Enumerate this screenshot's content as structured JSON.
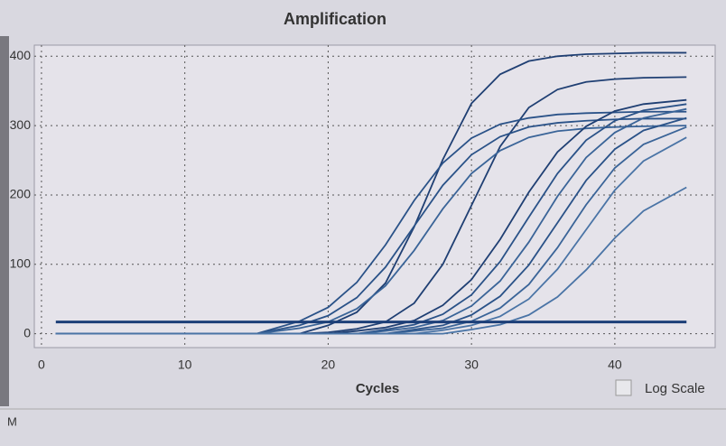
{
  "chart_data": {
    "type": "line",
    "title": "Amplification",
    "x_label": "Cycles",
    "x": [
      1,
      5,
      10,
      15,
      18,
      20,
      22,
      24,
      26,
      28,
      30,
      32,
      34,
      36,
      38,
      40,
      42,
      45
    ],
    "series": [
      {
        "color": "#1f3f73",
        "values": [
          0,
          0,
          0,
          0,
          0,
          12,
          31,
          73,
          154,
          251,
          332,
          374,
          393,
          400,
          403,
          404,
          405,
          405
        ]
      },
      {
        "color": "#1f3f73",
        "values": [
          0,
          0,
          0,
          0,
          0,
          2,
          7,
          17,
          44,
          100,
          185,
          270,
          326,
          352,
          363,
          367,
          369,
          370
        ]
      },
      {
        "color": "#2a5288",
        "values": [
          0,
          0,
          0,
          0,
          18,
          38,
          74,
          128,
          192,
          246,
          282,
          302,
          311,
          316,
          318,
          319,
          320,
          320
        ]
      },
      {
        "color": "#2a5288",
        "values": [
          0,
          0,
          0,
          0,
          12,
          26,
          52,
          96,
          155,
          214,
          258,
          284,
          298,
          304,
          307,
          309,
          310,
          310
        ]
      },
      {
        "color": "#3a6498",
        "values": [
          0,
          0,
          0,
          0,
          8,
          17,
          36,
          69,
          120,
          180,
          231,
          264,
          283,
          292,
          296,
          298,
          299,
          300
        ]
      },
      {
        "color": "#1f3f73",
        "values": [
          0,
          0,
          0,
          0,
          0,
          0,
          4,
          9,
          19,
          41,
          78,
          136,
          204,
          262,
          299,
          321,
          331,
          337
        ]
      },
      {
        "color": "#2a5288",
        "values": [
          0,
          0,
          0,
          0,
          0,
          0,
          0,
          6,
          13,
          28,
          56,
          104,
          168,
          231,
          279,
          307,
          322,
          331
        ]
      },
      {
        "color": "#3a6498",
        "values": [
          0,
          0,
          0,
          0,
          0,
          0,
          0,
          4,
          9,
          19,
          40,
          76,
          132,
          198,
          254,
          290,
          311,
          324
        ]
      },
      {
        "color": "#2a5288",
        "values": [
          0,
          0,
          0,
          0,
          0,
          0,
          0,
          0,
          6,
          12,
          27,
          54,
          99,
          160,
          221,
          266,
          293,
          311
        ]
      },
      {
        "color": "#3a6498",
        "values": [
          0,
          0,
          0,
          0,
          0,
          0,
          0,
          0,
          4,
          8,
          18,
          37,
          71,
          124,
          186,
          239,
          273,
          298
        ]
      },
      {
        "color": "#4a74a6",
        "values": [
          0,
          0,
          0,
          0,
          0,
          0,
          0,
          0,
          0,
          5,
          12,
          25,
          50,
          93,
          150,
          207,
          249,
          283
        ]
      },
      {
        "color": "#4a74a6",
        "values": [
          0,
          0,
          0,
          0,
          0,
          0,
          0,
          0,
          0,
          0,
          6,
          13,
          27,
          53,
          92,
          138,
          177,
          211
        ]
      }
    ],
    "threshold": 17,
    "threshold_color": "#1c3f78",
    "xlim": [
      -0.5,
      47
    ],
    "ylim": [
      -20,
      416
    ],
    "xticks": [
      0,
      10,
      20,
      30,
      40
    ],
    "yticks": [
      0,
      100,
      200,
      300,
      400
    ],
    "grid": true,
    "log_scale": false,
    "log_scale_label": "Log Scale",
    "status_text": "M"
  }
}
